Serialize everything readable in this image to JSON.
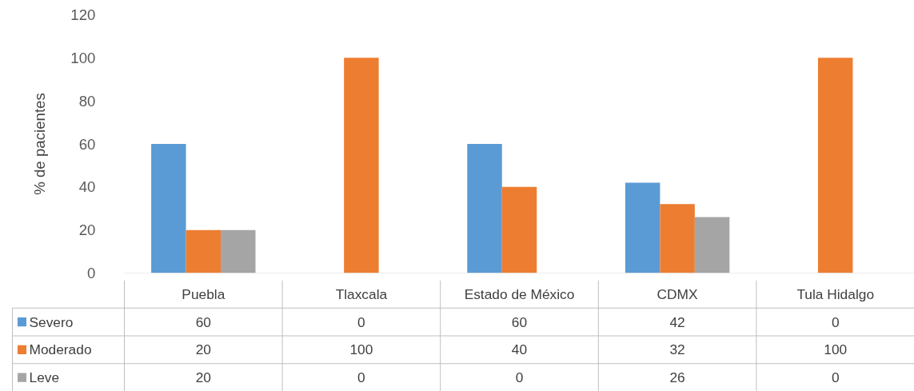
{
  "chart_data": {
    "type": "bar",
    "ylabel": "% de pacientes",
    "categories": [
      "Puebla",
      "Tlaxcala",
      "Estado de México",
      "CDMX",
      "Tula Hidalgo"
    ],
    "series": [
      {
        "name": "Severo",
        "color": "#5b9bd5",
        "values": [
          60,
          0,
          60,
          42,
          0
        ]
      },
      {
        "name": "Moderado",
        "color": "#ed7d31",
        "values": [
          20,
          100,
          40,
          32,
          100
        ]
      },
      {
        "name": "Leve",
        "color": "#a5a5a5",
        "values": [
          20,
          0,
          0,
          26,
          0
        ]
      }
    ],
    "ylim": [
      0,
      120
    ],
    "yticks": [
      0,
      20,
      40,
      60,
      80,
      100,
      120
    ],
    "grid": false,
    "legend": "left",
    "data_labels": true
  }
}
